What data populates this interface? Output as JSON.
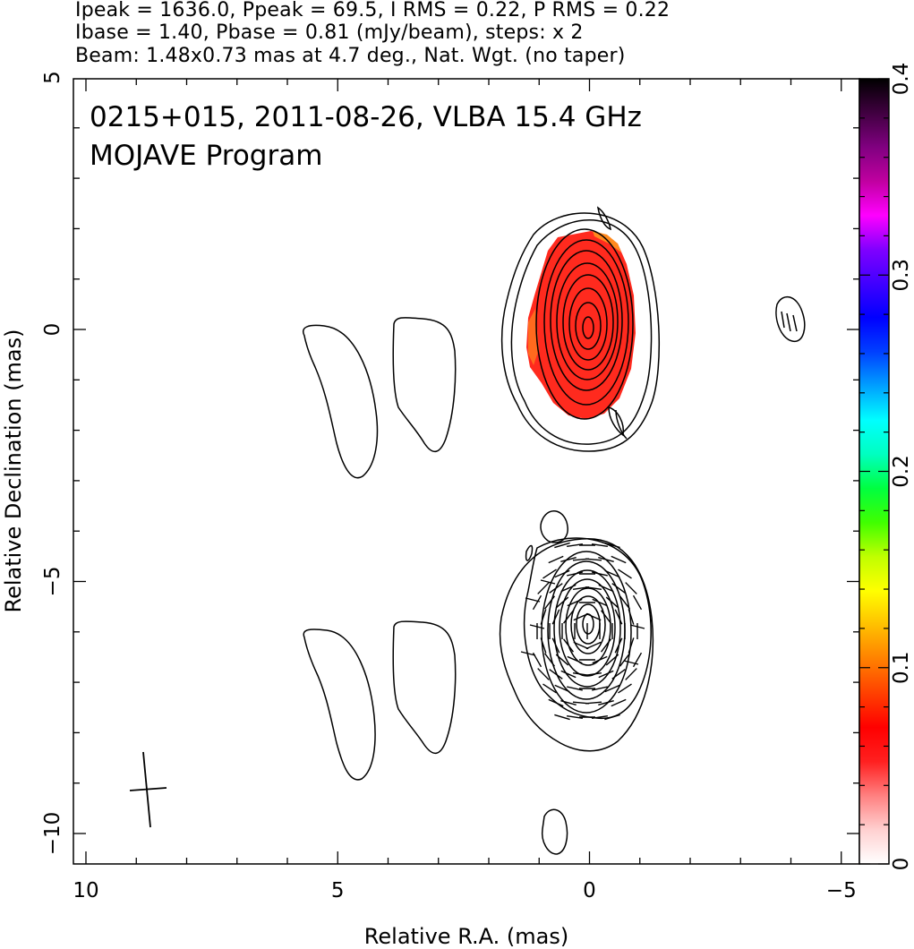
{
  "header": {
    "line1": "Ipeak = 1636.0, Ppeak = 69.5, I RMS = 0.22, P RMS = 0.22",
    "line2": "Ibase = 1.40, Pbase = 0.81 (mJy/beam), steps: x 2",
    "line3": "Beam: 1.48x0.73 mas at 4.7 deg., Nat. Wgt. (no taper)"
  },
  "annotation": {
    "line1": "0215+015, 2011-08-26, VLBA 15.4 GHz",
    "line2": "MOJAVE Program"
  },
  "chart_data": {
    "type": "heatmap",
    "xlabel": "Relative R.A. (mas)",
    "ylabel": "Relative Declination (mas)",
    "xlim": [
      10.2,
      -5.2
    ],
    "ylim": [
      -10.6,
      5
    ],
    "x_ticks": [
      "10",
      "5",
      "0",
      "−5"
    ],
    "x_tick_values": [
      10,
      5,
      0,
      -5
    ],
    "y_ticks": [
      "5",
      "0",
      "−5",
      "−10"
    ],
    "y_tick_values": [
      5,
      0,
      -5,
      -10
    ],
    "colorbar": {
      "range": [
        0,
        0.4
      ],
      "ticks": [
        "0",
        "0.1",
        "0.2",
        "0.3",
        "0.4"
      ],
      "tick_values": [
        0,
        0.1,
        0.2,
        0.3,
        0.4
      ],
      "colors": [
        "#ffffff",
        "#ffd0d0",
        "#ff8080",
        "#ff2020",
        "#ff0000",
        "#ff4000",
        "#ff8000",
        "#ffc000",
        "#ffff00",
        "#c0ff00",
        "#40ff00",
        "#00ff40",
        "#00ffc0",
        "#00ffff",
        "#00a0ff",
        "#0040ff",
        "#0000ff",
        "#4000ff",
        "#8000ff",
        "#ff00ff",
        "#c000a0",
        "#800080",
        "#400040",
        "#000000"
      ]
    },
    "fill_color": "#ff2a1e",
    "core_upper": {
      "ra": 0.05,
      "dec": 0.1
    },
    "core_lower": {
      "ra": 0.05,
      "dec": -5.9
    },
    "beam": {
      "major_mas": 1.48,
      "minor_mas": 0.73,
      "pa_deg": 4.7,
      "center": [
        8.9,
        -9.2
      ]
    }
  }
}
